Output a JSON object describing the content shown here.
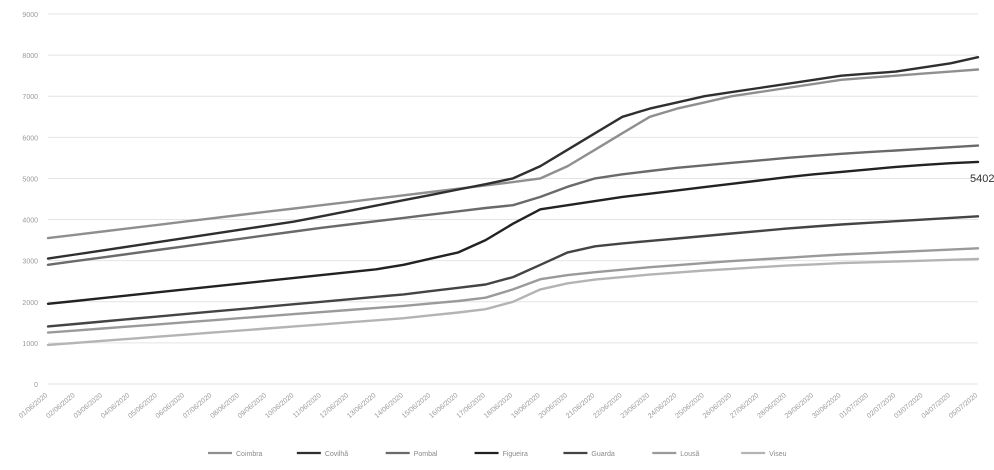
{
  "chart_data": {
    "type": "line",
    "title": "",
    "xlabel": "",
    "ylabel": "",
    "ylim": [
      0,
      9000
    ],
    "yticks": [
      0,
      1000,
      2000,
      3000,
      4000,
      5000,
      6000,
      7000,
      8000,
      9000
    ],
    "grid": true,
    "legend_position": "bottom",
    "categories": [
      "01/06/2020",
      "02/06/2020",
      "03/06/2020",
      "04/06/2020",
      "05/06/2020",
      "06/06/2020",
      "07/06/2020",
      "08/06/2020",
      "09/06/2020",
      "10/06/2020",
      "11/06/2020",
      "12/06/2020",
      "13/06/2020",
      "14/06/2020",
      "15/06/2020",
      "16/06/2020",
      "17/06/2020",
      "18/06/2020",
      "19/06/2020",
      "20/06/2020",
      "21/06/2020",
      "22/06/2020",
      "23/06/2020",
      "24/06/2020",
      "25/06/2020",
      "26/06/2020",
      "27/06/2020",
      "28/06/2020",
      "29/06/2020",
      "30/06/2020",
      "01/07/2020",
      "02/07/2020",
      "03/07/2020",
      "04/07/2020",
      "05/07/2020"
    ],
    "series": [
      {
        "name": "Coimbra",
        "color": "#8f8f8f",
        "values": [
          3550,
          3630,
          3710,
          3790,
          3870,
          3950,
          4030,
          4110,
          4190,
          4270,
          4350,
          4430,
          4510,
          4590,
          4670,
          4750,
          4830,
          4910,
          5000,
          5300,
          5700,
          6100,
          6500,
          6700,
          6850,
          7000,
          7100,
          7200,
          7300,
          7400,
          7450,
          7500,
          7550,
          7600,
          7650
        ]
      },
      {
        "name": "Covilhã",
        "color": "#2f2f2f",
        "values": [
          3050,
          3150,
          3250,
          3350,
          3450,
          3550,
          3650,
          3750,
          3850,
          3950,
          4080,
          4210,
          4340,
          4470,
          4600,
          4730,
          4860,
          5000,
          5300,
          5700,
          6100,
          6500,
          6700,
          6850,
          7000,
          7100,
          7200,
          7300,
          7400,
          7500,
          7550,
          7600,
          7700,
          7800,
          7950
        ]
      },
      {
        "name": "Pombal",
        "color": "#6a6a6a",
        "values": [
          2900,
          2990,
          3080,
          3170,
          3260,
          3350,
          3440,
          3530,
          3620,
          3710,
          3800,
          3880,
          3960,
          4040,
          4120,
          4200,
          4280,
          4350,
          4550,
          4800,
          5000,
          5100,
          5180,
          5260,
          5320,
          5380,
          5440,
          5500,
          5550,
          5600,
          5640,
          5680,
          5720,
          5760,
          5800
        ]
      },
      {
        "name": "Figueira",
        "color": "#222222",
        "values": [
          1950,
          2020,
          2090,
          2160,
          2230,
          2300,
          2370,
          2440,
          2510,
          2580,
          2650,
          2720,
          2790,
          2900,
          3050,
          3200,
          3500,
          3900,
          4250,
          4350,
          4450,
          4550,
          4630,
          4710,
          4790,
          4870,
          4950,
          5030,
          5100,
          5160,
          5220,
          5280,
          5330,
          5370,
          5402
        ]
      },
      {
        "name": "Guarda",
        "color": "#444444",
        "values": [
          1400,
          1460,
          1520,
          1580,
          1640,
          1700,
          1760,
          1820,
          1880,
          1940,
          2000,
          2060,
          2120,
          2180,
          2260,
          2340,
          2420,
          2600,
          2900,
          3200,
          3350,
          3420,
          3480,
          3540,
          3600,
          3660,
          3720,
          3780,
          3830,
          3880,
          3920,
          3960,
          4000,
          4040,
          4080
        ]
      },
      {
        "name": "Lousã",
        "color": "#9a9a9a",
        "values": [
          1250,
          1300,
          1350,
          1400,
          1450,
          1500,
          1550,
          1600,
          1650,
          1700,
          1750,
          1800,
          1850,
          1900,
          1960,
          2020,
          2100,
          2300,
          2550,
          2650,
          2720,
          2780,
          2840,
          2890,
          2940,
          2990,
          3030,
          3070,
          3110,
          3150,
          3180,
          3210,
          3240,
          3270,
          3300
        ]
      },
      {
        "name": "Viseu",
        "color": "#b4b4b4",
        "values": [
          950,
          1000,
          1050,
          1100,
          1150,
          1200,
          1250,
          1300,
          1350,
          1400,
          1450,
          1500,
          1550,
          1600,
          1670,
          1740,
          1820,
          2000,
          2300,
          2450,
          2540,
          2600,
          2660,
          2710,
          2760,
          2800,
          2840,
          2880,
          2910,
          2940,
          2960,
          2980,
          3000,
          3020,
          3040
        ]
      }
    ],
    "annotations": [
      {
        "series": "Figueira",
        "point": "05/07/2020",
        "label": "5402"
      }
    ]
  }
}
